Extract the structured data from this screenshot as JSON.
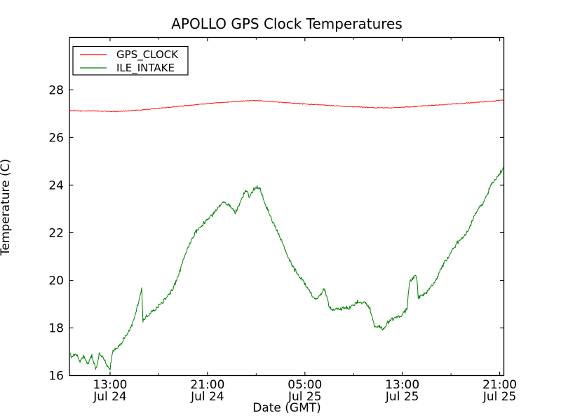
{
  "figure": {
    "title": "APOLLO GPS Clock Temperatures"
  },
  "chart_data": {
    "type": "line",
    "title": "APOLLO GPS Clock Temperatures",
    "xlabel": "Date (GMT)",
    "ylabel": "Temperature (C)",
    "x_unit": "hours since Jul 24 00:00 GMT",
    "xlim_hours": [
      9.66,
      45.34
    ],
    "ylim": [
      16,
      30.2
    ],
    "grid": false,
    "legend_position": "upper left",
    "background": "#ffffff",
    "axis_color": "#000000",
    "xticks": [
      {
        "t": 13,
        "line1": "13:00",
        "line2": "Jul 24"
      },
      {
        "t": 21,
        "line1": "21:00",
        "line2": "Jul 24"
      },
      {
        "t": 29,
        "line1": "05:00",
        "line2": "Jul 25"
      },
      {
        "t": 37,
        "line1": "13:00",
        "line2": "Jul 25"
      },
      {
        "t": 45,
        "line1": "21:00",
        "line2": "Jul 25"
      }
    ],
    "xticks_minor": [
      17,
      25,
      33,
      41
    ],
    "yticks": [
      16,
      18,
      20,
      22,
      24,
      26,
      28
    ],
    "series": [
      {
        "name": "GPS_CLOCK",
        "color": "#ff0000",
        "line_width": 0.9,
        "noise": 0.015,
        "points": [
          [
            9.66,
            27.13
          ],
          [
            10.5,
            27.11
          ],
          [
            11.5,
            27.12
          ],
          [
            12.5,
            27.1
          ],
          [
            13.5,
            27.09
          ],
          [
            14.5,
            27.12
          ],
          [
            15.5,
            27.15
          ],
          [
            16.5,
            27.2
          ],
          [
            17.5,
            27.25
          ],
          [
            18.5,
            27.3
          ],
          [
            19.5,
            27.35
          ],
          [
            20.5,
            27.4
          ],
          [
            21.5,
            27.44
          ],
          [
            22.5,
            27.48
          ],
          [
            23.5,
            27.52
          ],
          [
            24.5,
            27.55
          ],
          [
            25.5,
            27.54
          ],
          [
            26.5,
            27.5
          ],
          [
            27.5,
            27.46
          ],
          [
            28.5,
            27.42
          ],
          [
            29.5,
            27.39
          ],
          [
            30.5,
            27.36
          ],
          [
            31.5,
            27.33
          ],
          [
            32.5,
            27.3
          ],
          [
            33.5,
            27.28
          ],
          [
            34.5,
            27.26
          ],
          [
            35.5,
            27.24
          ],
          [
            36.5,
            27.25
          ],
          [
            37.5,
            27.28
          ],
          [
            38.5,
            27.31
          ],
          [
            39.5,
            27.35
          ],
          [
            40.5,
            27.38
          ],
          [
            41.5,
            27.42
          ],
          [
            42.5,
            27.45
          ],
          [
            43.5,
            27.49
          ],
          [
            44.5,
            27.53
          ],
          [
            45.34,
            27.57
          ]
        ]
      },
      {
        "name": "ILE_INTAKE",
        "color": "#008000",
        "line_width": 1.0,
        "noise": 0.07,
        "points": [
          [
            9.66,
            16.9
          ],
          [
            9.9,
            16.8
          ],
          [
            10.2,
            16.9
          ],
          [
            10.53,
            16.55
          ],
          [
            10.8,
            16.85
          ],
          [
            11.16,
            16.45
          ],
          [
            11.5,
            16.85
          ],
          [
            11.85,
            16.25
          ],
          [
            12.1,
            16.9
          ],
          [
            12.5,
            16.7
          ],
          [
            12.8,
            16.35
          ],
          [
            13.0,
            16.3
          ],
          [
            13.2,
            17.0
          ],
          [
            13.5,
            17.15
          ],
          [
            13.9,
            17.3
          ],
          [
            14.2,
            17.6
          ],
          [
            14.44,
            17.8
          ],
          [
            14.8,
            18.1
          ],
          [
            15.0,
            18.45
          ],
          [
            15.24,
            18.9
          ],
          [
            15.45,
            19.35
          ],
          [
            15.6,
            19.65
          ],
          [
            15.7,
            18.3
          ],
          [
            16.0,
            18.5
          ],
          [
            16.5,
            18.7
          ],
          [
            17.0,
            18.95
          ],
          [
            17.5,
            19.2
          ],
          [
            18.0,
            19.5
          ],
          [
            18.4,
            19.9
          ],
          [
            19.0,
            20.8
          ],
          [
            19.56,
            21.6
          ],
          [
            20.0,
            22.0
          ],
          [
            20.7,
            22.4
          ],
          [
            21.3,
            22.7
          ],
          [
            21.9,
            23.05
          ],
          [
            22.3,
            23.3
          ],
          [
            22.7,
            23.2
          ],
          [
            23.3,
            22.85
          ],
          [
            23.8,
            23.4
          ],
          [
            24.16,
            23.8
          ],
          [
            24.45,
            23.5
          ],
          [
            24.8,
            23.85
          ],
          [
            25.03,
            23.9
          ],
          [
            25.3,
            23.85
          ],
          [
            25.9,
            23.0
          ],
          [
            26.5,
            22.3
          ],
          [
            27.04,
            21.7
          ],
          [
            27.6,
            21.0
          ],
          [
            28.2,
            20.4
          ],
          [
            28.8,
            20.0
          ],
          [
            29.2,
            19.7
          ],
          [
            29.6,
            19.35
          ],
          [
            30.03,
            19.2
          ],
          [
            30.6,
            19.65
          ],
          [
            31.0,
            18.9
          ],
          [
            31.24,
            18.75
          ],
          [
            31.8,
            18.8
          ],
          [
            32.6,
            18.85
          ],
          [
            33.4,
            19.1
          ],
          [
            34.0,
            19.05
          ],
          [
            34.35,
            18.8
          ],
          [
            34.7,
            18.1
          ],
          [
            35.0,
            18.05
          ],
          [
            35.4,
            17.95
          ],
          [
            35.85,
            18.25
          ],
          [
            36.4,
            18.45
          ],
          [
            37.0,
            18.55
          ],
          [
            37.4,
            18.85
          ],
          [
            37.58,
            19.9
          ],
          [
            38.0,
            20.15
          ],
          [
            38.2,
            20.1
          ],
          [
            38.3,
            19.25
          ],
          [
            38.7,
            19.4
          ],
          [
            39.1,
            19.55
          ],
          [
            39.7,
            19.95
          ],
          [
            40.3,
            20.6
          ],
          [
            40.85,
            21.05
          ],
          [
            41.4,
            21.5
          ],
          [
            41.7,
            21.7
          ],
          [
            42.0,
            21.8
          ],
          [
            42.4,
            22.1
          ],
          [
            43.0,
            22.8
          ],
          [
            43.4,
            23.1
          ],
          [
            43.7,
            23.25
          ],
          [
            44.3,
            24.0
          ],
          [
            44.8,
            24.35
          ],
          [
            45.34,
            24.7
          ]
        ]
      }
    ]
  }
}
